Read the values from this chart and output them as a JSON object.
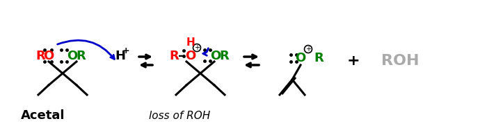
{
  "bg_color": "#ffffff",
  "acetal_label": "Acetal",
  "loss_label": "loss of ROH",
  "ROH_label": "ROH",
  "plus_label": "+",
  "colors": {
    "red": "#ff0000",
    "green": "#008000",
    "black": "#000000",
    "blue": "#0000cc",
    "gray": "#aaaaaa"
  },
  "fontsize_main": 13,
  "fontsize_small": 9,
  "fontsize_plus": 16,
  "fontsize_loss": 11
}
